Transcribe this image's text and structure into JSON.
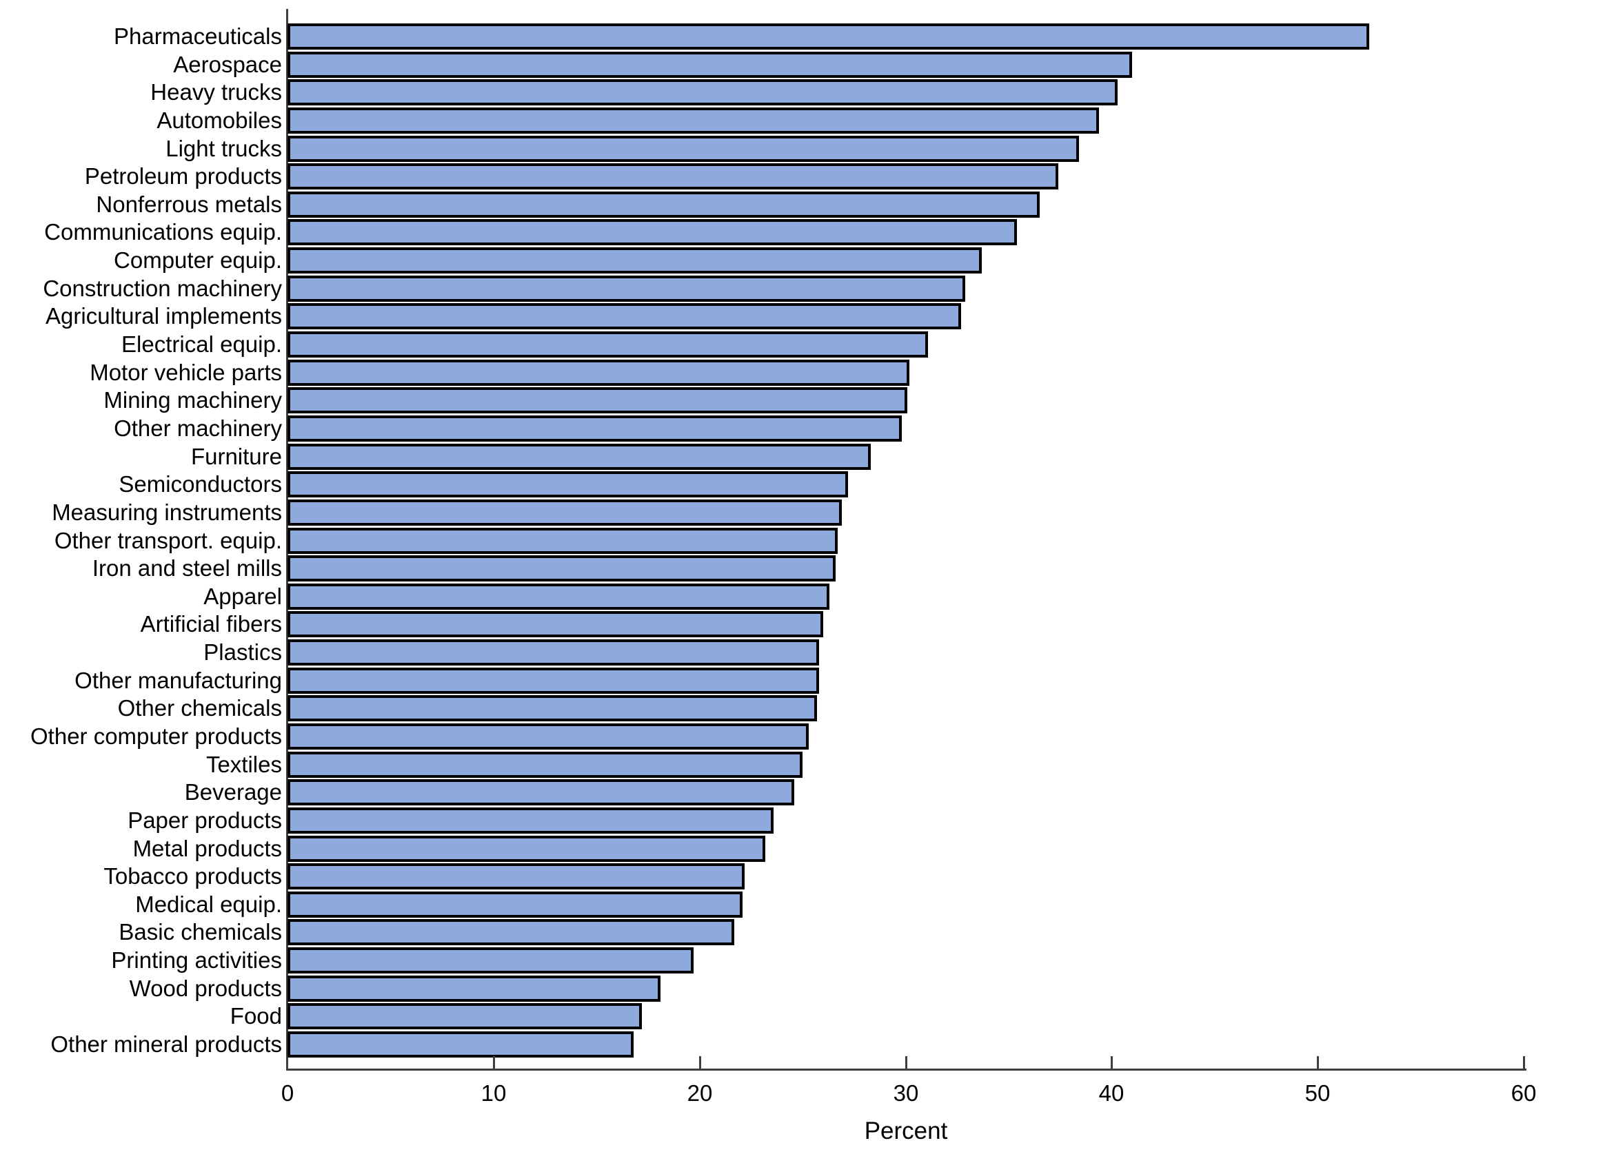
{
  "figure": {
    "background": "#ffffff"
  },
  "chart_data": {
    "type": "bar",
    "orientation": "horizontal",
    "title": "",
    "xlabel": "Percent",
    "ylabel": "",
    "xlim": [
      0,
      60
    ],
    "x_ticks": [
      0,
      10,
      20,
      30,
      40,
      50,
      60
    ],
    "grid": false,
    "legend": null,
    "bar_fill": "#8ea9db",
    "bar_border": "#000000",
    "axis_color": "#3f3f3f",
    "text_color": "#000000",
    "categories": [
      "Pharmaceuticals",
      "Aerospace",
      "Heavy trucks",
      "Automobiles",
      "Light trucks",
      "Petroleum products",
      "Nonferrous metals",
      "Communications equip.",
      "Computer equip.",
      "Construction machinery",
      "Agricultural implements",
      "Electrical equip.",
      "Motor vehicle parts",
      "Mining machinery",
      "Other machinery",
      "Furniture",
      "Semiconductors",
      "Measuring instruments",
      "Other transport. equip.",
      "Iron and steel mills",
      "Apparel",
      "Artificial fibers",
      "Plastics",
      "Other manufacturing",
      "Other chemicals",
      "Other computer products",
      "Textiles",
      "Beverage",
      "Paper products",
      "Metal products",
      "Tobacco products",
      "Medical equip.",
      "Basic chemicals",
      "Printing activities",
      "Wood products",
      "Food",
      "Other mineral products"
    ],
    "values": [
      52.5,
      41.0,
      40.3,
      39.4,
      38.4,
      37.4,
      36.5,
      35.4,
      33.7,
      32.9,
      32.7,
      31.1,
      30.2,
      30.1,
      29.8,
      28.3,
      27.2,
      26.9,
      26.7,
      26.6,
      26.3,
      26.0,
      25.8,
      25.8,
      25.7,
      25.3,
      25.0,
      24.6,
      23.6,
      23.2,
      22.2,
      22.1,
      21.7,
      19.7,
      18.1,
      17.2,
      16.8
    ]
  }
}
